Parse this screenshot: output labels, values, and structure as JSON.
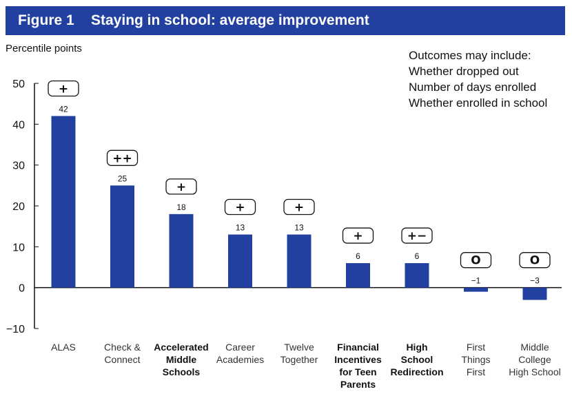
{
  "header": {
    "figure_label": "Figure 1",
    "title": "Staying in school: average improvement"
  },
  "outcomes_note": {
    "heading": "Outcomes may include:",
    "items": [
      "Whether dropped out",
      "Number of days enrolled",
      "Whether enrolled in school"
    ]
  },
  "colors": {
    "header_bg": "#2140a0",
    "bar": "#2140a0"
  },
  "chart_data": {
    "type": "bar",
    "title": "Staying in school: average improvement",
    "ylabel": "Percentile points",
    "xlabel": "",
    "ylim": [
      -10,
      50
    ],
    "yticks": [
      -10,
      0,
      10,
      20,
      30,
      40,
      50
    ],
    "ytick_labels": [
      "−10",
      "0",
      "10",
      "20",
      "30",
      "40",
      "50"
    ],
    "grid": false,
    "categories": [
      {
        "lines": [
          "ALAS"
        ],
        "bold": false
      },
      {
        "lines": [
          "Check &",
          "Connect"
        ],
        "bold": false
      },
      {
        "lines": [
          "Accelerated",
          "Middle",
          "Schools"
        ],
        "bold": true
      },
      {
        "lines": [
          "Career",
          "Academies"
        ],
        "bold": false
      },
      {
        "lines": [
          "Twelve",
          "Together"
        ],
        "bold": false
      },
      {
        "lines": [
          "Financial",
          "Incentives",
          "for Teen",
          "Parents"
        ],
        "bold": true
      },
      {
        "lines": [
          "High",
          "School",
          "Redirection"
        ],
        "bold": true
      },
      {
        "lines": [
          "First",
          "Things",
          "First"
        ],
        "bold": false
      },
      {
        "lines": [
          "Middle",
          "College",
          "High School"
        ],
        "bold": false
      }
    ],
    "values": [
      42,
      25,
      18,
      13,
      13,
      6,
      6,
      -1,
      -3
    ],
    "value_labels": [
      "42",
      "25",
      "18",
      "13",
      "13",
      "6",
      "6",
      "−1",
      "−3"
    ],
    "effect_ratings": [
      "+",
      "++",
      "+",
      "+",
      "+",
      "+",
      "+−",
      "O",
      "O"
    ]
  }
}
